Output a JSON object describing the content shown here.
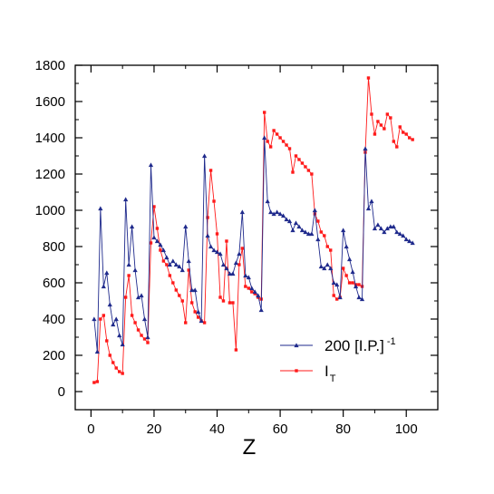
{
  "chart_data": {
    "type": "line",
    "xlabel": "Z",
    "ylabel": "",
    "xlim": [
      -5,
      110
    ],
    "ylim": [
      -100,
      1800
    ],
    "x_ticks": [
      0,
      20,
      40,
      60,
      80,
      100
    ],
    "y_ticks": [
      0,
      200,
      400,
      600,
      800,
      1000,
      1200,
      1400,
      1600,
      1800
    ],
    "grid": false,
    "legend_position": "bottom-right",
    "series": [
      {
        "name": "200 [I.P.]",
        "name_superscript": "-1",
        "color": "#1f2a8c",
        "marker": "triangle",
        "x": [
          1,
          2,
          3,
          4,
          5,
          6,
          7,
          8,
          9,
          10,
          11,
          12,
          13,
          14,
          15,
          16,
          17,
          18,
          19,
          20,
          21,
          22,
          23,
          24,
          25,
          26,
          27,
          28,
          29,
          30,
          31,
          32,
          33,
          34,
          35,
          36,
          37,
          38,
          39,
          40,
          41,
          42,
          43,
          44,
          45,
          46,
          47,
          48,
          49,
          50,
          51,
          52,
          53,
          54,
          55,
          56,
          57,
          58,
          59,
          60,
          61,
          62,
          63,
          64,
          65,
          66,
          67,
          68,
          69,
          70,
          71,
          72,
          73,
          74,
          75,
          76,
          77,
          78,
          79,
          80,
          81,
          82,
          83,
          84,
          85,
          86,
          87,
          88,
          89,
          90,
          91,
          92,
          93,
          94,
          95,
          96,
          97,
          98,
          99,
          100,
          101,
          102
        ],
        "y": [
          400,
          220,
          1010,
          580,
          655,
          480,
          370,
          400,
          310,
          260,
          1060,
          700,
          910,
          670,
          520,
          530,
          400,
          300,
          1250,
          850,
          830,
          810,
          780,
          740,
          700,
          720,
          700,
          690,
          670,
          910,
          720,
          560,
          560,
          440,
          390,
          1300,
          860,
          800,
          780,
          770,
          760,
          700,
          680,
          650,
          650,
          710,
          760,
          990,
          640,
          630,
          570,
          550,
          530,
          450,
          1400,
          1050,
          990,
          980,
          990,
          980,
          970,
          950,
          940,
          890,
          930,
          910,
          890,
          880,
          870,
          870,
          1000,
          840,
          690,
          680,
          700,
          680,
          600,
          590,
          520,
          890,
          800,
          730,
          660,
          580,
          520,
          510,
          1340,
          1010,
          1050,
          900,
          920,
          900,
          880,
          900,
          910,
          910,
          880,
          870,
          860,
          840,
          830,
          820
        ]
      },
      {
        "name": "I",
        "name_subscript": "T",
        "color": "#ff1a1a",
        "marker": "square",
        "x": [
          1,
          2,
          3,
          4,
          5,
          6,
          7,
          8,
          9,
          10,
          11,
          12,
          13,
          14,
          15,
          16,
          17,
          18,
          19,
          20,
          21,
          22,
          23,
          24,
          25,
          26,
          27,
          28,
          29,
          30,
          31,
          32,
          33,
          34,
          35,
          36,
          37,
          38,
          39,
          40,
          41,
          42,
          43,
          44,
          45,
          46,
          47,
          48,
          49,
          50,
          51,
          52,
          53,
          54,
          55,
          56,
          57,
          58,
          59,
          60,
          61,
          62,
          63,
          64,
          65,
          66,
          67,
          68,
          69,
          70,
          71,
          72,
          73,
          74,
          75,
          76,
          77,
          78,
          79,
          80,
          81,
          82,
          83,
          84,
          85,
          86,
          87,
          88,
          89,
          90,
          91,
          92,
          93,
          94,
          95,
          96,
          97,
          98,
          99,
          100,
          101,
          102
        ],
        "y": [
          50,
          55,
          400,
          420,
          280,
          200,
          160,
          130,
          110,
          100,
          520,
          640,
          420,
          380,
          340,
          310,
          290,
          270,
          820,
          1020,
          900,
          780,
          720,
          700,
          640,
          600,
          560,
          530,
          500,
          380,
          670,
          490,
          440,
          410,
          390,
          380,
          960,
          1220,
          1050,
          870,
          520,
          500,
          830,
          490,
          490,
          230,
          700,
          790,
          580,
          570,
          550,
          540,
          520,
          510,
          1540,
          1380,
          1350,
          1440,
          1420,
          1400,
          1380,
          1360,
          1340,
          1210,
          1300,
          1280,
          1260,
          1240,
          1220,
          1200,
          980,
          940,
          880,
          860,
          800,
          780,
          530,
          510,
          520,
          680,
          640,
          600,
          600,
          590,
          590,
          580,
          1320,
          1730,
          1530,
          1420,
          1490,
          1470,
          1450,
          1530,
          1510,
          1380,
          1350,
          1460,
          1430,
          1420,
          1400,
          1390
        ]
      }
    ]
  }
}
